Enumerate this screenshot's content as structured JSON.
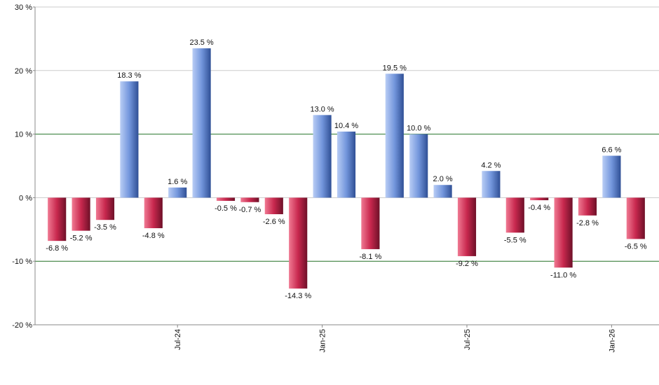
{
  "chart_data": {
    "type": "bar",
    "categories": [
      null,
      null,
      null,
      null,
      null,
      "Jul-24",
      null,
      null,
      null,
      null,
      null,
      "Jan-25",
      null,
      null,
      null,
      null,
      null,
      "Jul-25",
      null,
      null,
      null,
      null,
      null,
      "Jan-26",
      null
    ],
    "values": [
      -6.8,
      -5.2,
      -3.5,
      18.3,
      -4.8,
      1.6,
      23.5,
      -0.5,
      -0.7,
      -2.6,
      -14.3,
      13.0,
      10.4,
      -8.1,
      19.5,
      10.0,
      2.0,
      -9.2,
      4.2,
      -5.5,
      -0.4,
      -11.0,
      -2.8,
      6.6,
      -6.5
    ],
    "value_labels": [
      "-6.8 %",
      "-5.2 %",
      "-3.5 %",
      "18.3 %",
      "-4.8 %",
      "1.6 %",
      "23.5 %",
      "-0.5 %",
      "-0.7 %",
      "-2.6 %",
      "-14.3 %",
      "13.0 %",
      "10.4 %",
      "-8.1 %",
      "19.5 %",
      "10.0 %",
      "2.0 %",
      "-9.2 %",
      "4.2 %",
      "-5.5 %",
      "-0.4 %",
      "-11.0 %",
      "-2.8 %",
      "6.6 %",
      "-6.5 %"
    ],
    "positive_color": "#6f92d8",
    "negative_color": "#c8284e",
    "ylim": [
      -20,
      30
    ],
    "yticks": [
      {
        "value": -20,
        "label": "-20 %"
      },
      {
        "value": -10,
        "label": "-10 %"
      },
      {
        "value": 0,
        "label": "0 %"
      },
      {
        "value": 10,
        "label": "10 %"
      },
      {
        "value": 20,
        "label": "20 %"
      },
      {
        "value": 30,
        "label": "30 %"
      }
    ],
    "grid": true,
    "grid_color": "#cccccc",
    "ref_lines": [
      {
        "value": 10,
        "color": "#2e7d32"
      },
      {
        "value": -10,
        "color": "#2e7d32"
      }
    ]
  }
}
